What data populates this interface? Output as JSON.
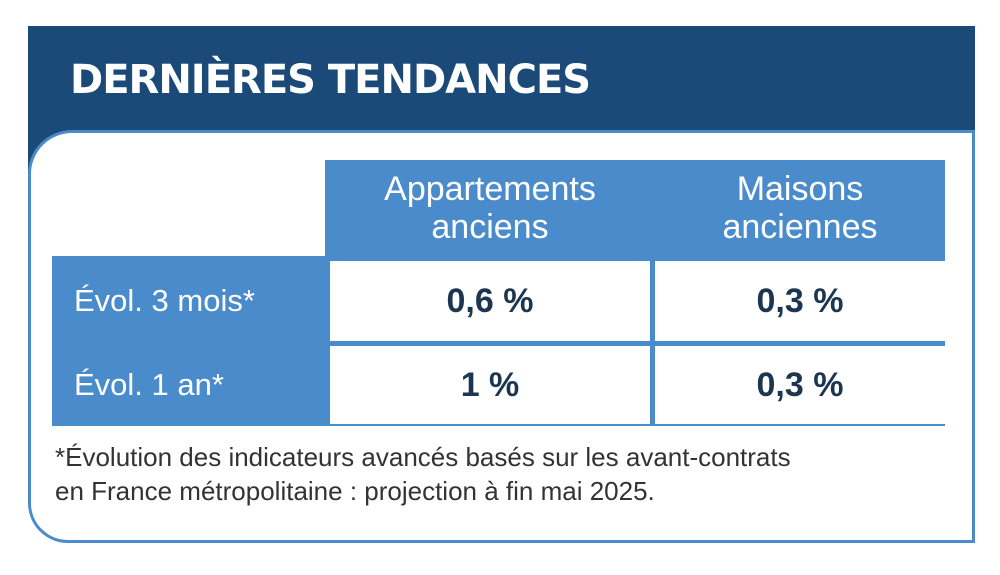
{
  "header": {
    "title": "DERNIÈRES TENDANCES"
  },
  "table": {
    "columns": [
      "Appartements anciens",
      "Maisons anciennes"
    ],
    "rows": [
      [
        "Évol. 3 mois*",
        "0,6 %",
        "0,3 %"
      ],
      [
        "Évol. 1 an*",
        "1 %",
        "0,3 %"
      ]
    ]
  },
  "footnote": {
    "lines": [
      "*Évolution des indicateurs avancés basés sur les avant-contrats",
      "en France métropolitaine : projection à fin mai 2025."
    ]
  }
}
